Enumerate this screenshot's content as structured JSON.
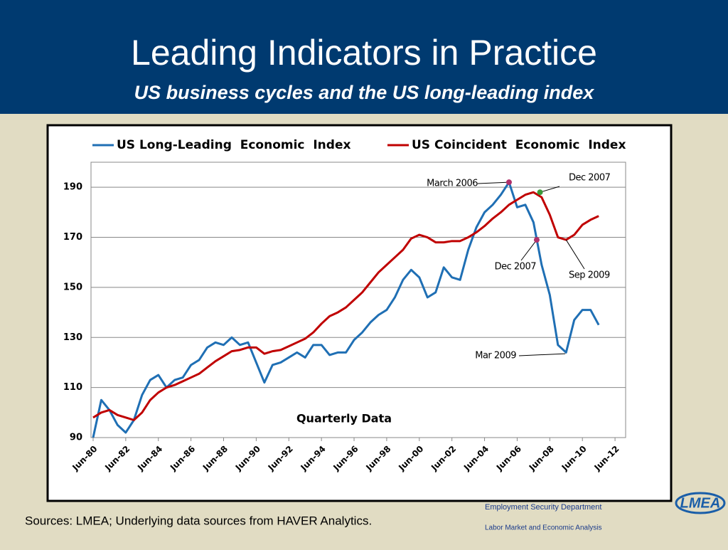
{
  "header": {
    "title": "Leading Indicators in Practice",
    "subtitle": "US business cycles and the US long-leading index"
  },
  "chart_data": {
    "type": "line",
    "x": [
      1980.5,
      1981,
      1981.5,
      1982,
      1982.5,
      1983,
      1983.5,
      1984,
      1984.5,
      1985,
      1985.5,
      1986,
      1986.5,
      1987,
      1987.5,
      1988,
      1988.5,
      1989,
      1989.5,
      1990,
      1990.5,
      1991,
      1991.5,
      1992,
      1992.5,
      1993,
      1993.5,
      1994,
      1994.5,
      1995,
      1995.5,
      1996,
      1996.5,
      1997,
      1997.5,
      1998,
      1998.5,
      1999,
      1999.5,
      2000,
      2000.5,
      2001,
      2001.5,
      2002,
      2002.5,
      2003,
      2003.5,
      2004,
      2004.5,
      2005,
      2005.5,
      2006,
      2006.5,
      2007,
      2007.5,
      2008,
      2008.5,
      2009,
      2009.5,
      2010,
      2010.5,
      2011,
      2011.5
    ],
    "series": [
      {
        "name": "US Long-Leading  Economic  Index",
        "color": "#1f6fb4",
        "values": [
          90,
          105,
          101,
          95,
          92,
          97,
          107,
          113,
          115,
          110,
          113,
          114,
          119,
          121,
          126,
          128,
          127,
          130,
          127,
          128,
          120,
          112,
          119,
          120,
          122,
          124,
          122,
          127,
          127,
          123,
          124,
          124,
          129,
          132,
          136,
          139,
          141,
          146,
          153,
          157,
          154,
          146,
          148,
          158,
          154,
          153,
          165,
          174,
          180,
          183,
          187,
          192,
          182,
          183,
          176,
          159,
          147,
          127,
          124,
          137,
          141,
          141,
          135
        ]
      },
      {
        "name": "US Coincident  Economic  Index",
        "color": "#c00000",
        "values": [
          98,
          100,
          101,
          99,
          98,
          97,
          100,
          105,
          108,
          110,
          111,
          112.5,
          114,
          115.5,
          118,
          120.5,
          122.5,
          124.5,
          125,
          126,
          126,
          123.5,
          124.5,
          125,
          126.5,
          128,
          129.5,
          132,
          135.5,
          138.5,
          140,
          142,
          145,
          148,
          152,
          156,
          159,
          162,
          165,
          169.5,
          171,
          170,
          168,
          168,
          168.5,
          168.5,
          170,
          172,
          174.5,
          177.5,
          180,
          183,
          185,
          187,
          188,
          186,
          179,
          170,
          169,
          171,
          175,
          177,
          178.5
        ]
      }
    ],
    "xlim": [
      1980.37,
      2013.15
    ],
    "xticks": [
      {
        "value": 1980.5,
        "label": "Jun-80"
      },
      {
        "value": 1982.5,
        "label": "Jun-82"
      },
      {
        "value": 1984.5,
        "label": "Jun-84"
      },
      {
        "value": 1986.5,
        "label": "Jun-86"
      },
      {
        "value": 1988.5,
        "label": "Jun-88"
      },
      {
        "value": 1990.5,
        "label": "Jun-90"
      },
      {
        "value": 1992.5,
        "label": "Jun-92"
      },
      {
        "value": 1994.5,
        "label": "Jun-94"
      },
      {
        "value": 1996.5,
        "label": "Jun-96"
      },
      {
        "value": 1998.5,
        "label": "Jun-98"
      },
      {
        "value": 2000.5,
        "label": "Jun-00"
      },
      {
        "value": 2002.5,
        "label": "Jun-02"
      },
      {
        "value": 2004.5,
        "label": "Jun-04"
      },
      {
        "value": 2006.5,
        "label": "Jun-06"
      },
      {
        "value": 2008.5,
        "label": "Jun-08"
      },
      {
        "value": 2010.5,
        "label": "Jun-10"
      },
      {
        "value": 2012.5,
        "label": "Jun-12"
      }
    ],
    "ylim": [
      90,
      200
    ],
    "yticks": [
      90,
      110,
      130,
      150,
      170,
      190
    ],
    "grid": true,
    "legend": "top",
    "note": "Quarterly Data",
    "annotations": [
      {
        "text": "March 2006",
        "x": 2006.0,
        "y": 192,
        "color": "#b0306a"
      },
      {
        "text": "Dec 2007",
        "x": 2007.9,
        "y": 188,
        "color": "#3a9a3a"
      },
      {
        "text": "Dec 2007",
        "x": 2007.7,
        "y": 169,
        "color": "#b0306a"
      },
      {
        "text": "Mar 2009",
        "x": 2009.45,
        "y": 123.5
      },
      {
        "text": "Sep 2009",
        "x": 2009.5,
        "y": 169
      }
    ]
  },
  "footer": {
    "sources": "Sources: LMEA; Underlying data sources from HAVER Analytics.",
    "org": "Employment Security Department",
    "division": "Labor Market and Economic Analysis",
    "logo": "LMEA"
  }
}
